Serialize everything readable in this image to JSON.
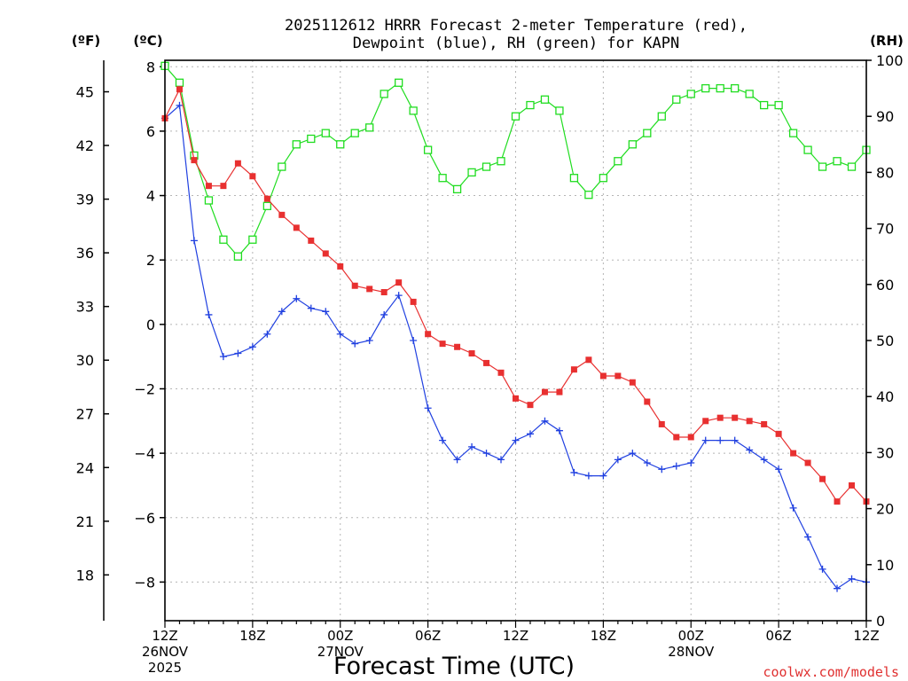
{
  "title_line1": "2025112612 HRRR Forecast 2-meter Temperature (red),",
  "title_line2": "Dewpoint (blue), RH (green) for KAPN",
  "unit_f": "(ºF)",
  "unit_c": "(ºC)",
  "unit_rh": "(RH)",
  "xlabel": "Forecast Time (UTC)",
  "credit": "coolwx.com/models",
  "colors": {
    "temperature": "#e83030",
    "dewpoint": "#2040e0",
    "rh": "#20dd20"
  },
  "chart_data": {
    "type": "line",
    "title": "2025112612 HRRR Forecast 2-meter Temperature (red), Dewpoint (blue), RH (green) for KAPN",
    "x": {
      "start": 0,
      "end": 48,
      "step_hours": 1,
      "units": "forecast hours from 2025-11-26 12Z"
    },
    "x_ticks": [
      {
        "hour": 0,
        "label": "12Z",
        "date": "26NOV",
        "year": "2025"
      },
      {
        "hour": 6,
        "label": "18Z"
      },
      {
        "hour": 12,
        "label": "00Z",
        "date": "27NOV"
      },
      {
        "hour": 18,
        "label": "06Z"
      },
      {
        "hour": 24,
        "label": "12Z"
      },
      {
        "hour": 30,
        "label": "18Z"
      },
      {
        "hour": 36,
        "label": "00Z",
        "date": "28NOV"
      },
      {
        "hour": 42,
        "label": "06Z"
      },
      {
        "hour": 48,
        "label": "12Z"
      }
    ],
    "y_left_c": {
      "label": "(ºC)",
      "range": [
        -9.2,
        8.2
      ],
      "ticks": [
        8,
        6,
        4,
        2,
        0,
        -2,
        -4,
        -6,
        -8
      ]
    },
    "y_left_f": {
      "label": "(ºF)",
      "ticks": [
        45,
        42,
        39,
        36,
        33,
        30,
        27,
        24,
        21,
        18
      ]
    },
    "y_right": {
      "label": "(RH)",
      "range": [
        0,
        100
      ],
      "ticks": [
        100,
        90,
        80,
        70,
        60,
        50,
        40,
        30,
        20,
        10,
        0
      ]
    },
    "series": [
      {
        "name": "Temperature (°C)",
        "marker": "filled-square",
        "axis": "celsius",
        "values": [
          6.4,
          7.3,
          5.1,
          4.3,
          4.3,
          5.0,
          4.6,
          3.9,
          3.4,
          3.0,
          2.6,
          2.2,
          1.8,
          1.2,
          1.1,
          1.0,
          1.3,
          0.7,
          -0.3,
          -0.6,
          -0.7,
          -0.9,
          -1.2,
          -1.5,
          -2.3,
          -2.5,
          -2.1,
          -2.1,
          -1.4,
          -1.1,
          -1.6,
          -1.6,
          -1.8,
          -2.4,
          -3.1,
          -3.5,
          -3.5,
          -3.0,
          -2.9,
          -2.9,
          -3.0,
          -3.1,
          -3.4,
          -4.0,
          -4.3,
          -4.8,
          -5.5,
          -5.0,
          -5.5
        ]
      },
      {
        "name": "Dewpoint (°C)",
        "marker": "plus",
        "axis": "celsius",
        "values": [
          6.4,
          6.8,
          2.6,
          0.3,
          -1.0,
          -0.9,
          -0.7,
          -0.3,
          0.4,
          0.8,
          0.5,
          0.4,
          -0.3,
          -0.6,
          -0.5,
          0.3,
          0.9,
          -0.5,
          -2.6,
          -3.6,
          -4.2,
          -3.8,
          -4.0,
          -4.2,
          -3.6,
          -3.4,
          -3.0,
          -3.3,
          -4.6,
          -4.7,
          -4.7,
          -4.2,
          -4.0,
          -4.3,
          -4.5,
          -4.4,
          -4.3,
          -3.6,
          -3.6,
          -3.6,
          -3.9,
          -4.2,
          -4.5,
          -5.7,
          -6.6,
          -7.6,
          -8.2,
          -7.9,
          -8.0
        ]
      },
      {
        "name": "RH (%)",
        "marker": "open-square",
        "axis": "rh",
        "values": [
          99,
          96,
          83,
          75,
          68,
          65,
          68,
          74,
          81,
          85,
          86,
          87,
          85,
          87,
          88,
          94,
          96,
          91,
          84,
          79,
          77,
          80,
          81,
          82,
          90,
          92,
          93,
          91,
          79,
          76,
          79,
          82,
          85,
          87,
          90,
          93,
          94,
          95,
          95,
          95,
          94,
          92,
          92,
          87,
          84,
          81,
          82,
          81,
          84
        ]
      }
    ]
  }
}
